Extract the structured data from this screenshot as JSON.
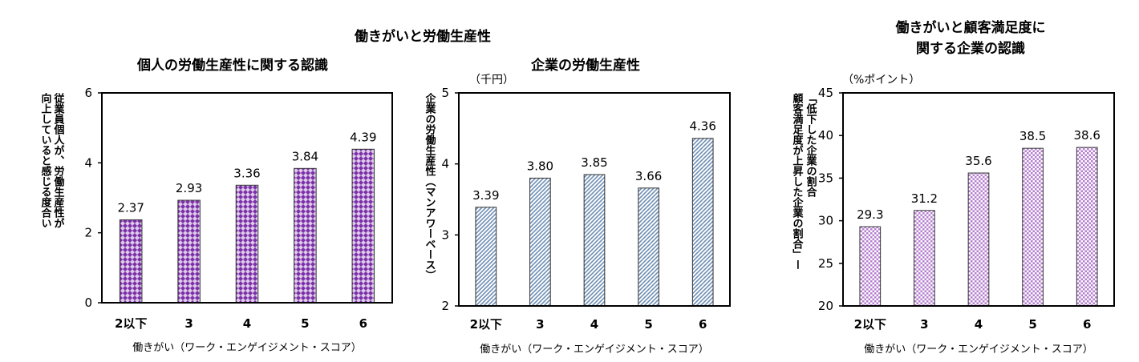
{
  "figure": {
    "group_title": "働きがいと労働生産性"
  },
  "chart_data": [
    {
      "type": "bar",
      "title": "個人の労働生産性に関する認識",
      "xlabel": "働きがい（ワーク・エンゲイジメント・スコア）",
      "ylabel": "従業員個人が、労働生産性が向上していると感じる度合い",
      "ylabel_lines": [
        "従業員個人が、労働生産性が",
        "向上していると感じる度合い"
      ],
      "unit": "",
      "categories": [
        "2以下",
        "3",
        "4",
        "5",
        "6"
      ],
      "values": [
        2.37,
        2.93,
        3.36,
        3.84,
        4.39
      ],
      "value_labels": [
        "2.37",
        "2.93",
        "3.36",
        "3.84",
        "4.39"
      ],
      "ylim": [
        0,
        6
      ],
      "yticks": [
        0,
        2,
        4,
        6
      ],
      "ytick_labels": [
        "0",
        "2",
        "4",
        "6"
      ],
      "grid": false,
      "bar_color": "#7b2fa8",
      "pattern": "crosshatch"
    },
    {
      "type": "bar",
      "title": "企業の労働生産性",
      "xlabel": "働きがい（ワーク・エンゲイジメント・スコア）",
      "ylabel": "企業の労働生産性（マンアワーベース）",
      "ylabel_lines": [
        "企業の労働生産性（マンアワーベース）"
      ],
      "unit": "（千円）",
      "categories": [
        "2以下",
        "3",
        "4",
        "5",
        "6"
      ],
      "values": [
        3.39,
        3.8,
        3.85,
        3.66,
        4.36
      ],
      "value_labels": [
        "3.39",
        "3.80",
        "3.85",
        "3.66",
        "4.36"
      ],
      "ylim": [
        2,
        5
      ],
      "yticks": [
        2,
        3,
        4,
        5
      ],
      "ytick_labels": [
        "2",
        "3",
        "4",
        "5"
      ],
      "grid": false,
      "bar_color": "#6f8fb5",
      "pattern": "diagonal"
    },
    {
      "type": "bar",
      "title": "働きがいと顧客満足度に関する企業の認識",
      "title_lines": [
        "働きがいと顧客満足度に",
        "関する企業の認識"
      ],
      "xlabel": "働きがい（ワーク・エンゲイジメント・スコア）",
      "ylabel": "顧客満足度が上昇した企業の割合ー低下した企業の割合",
      "ylabel_lines": [
        "顧客満足度が上昇した企業の割合」ー",
        "「低下した企業の割合"
      ],
      "unit": "（%ポイント）",
      "categories": [
        "2以下",
        "3",
        "4",
        "5",
        "6"
      ],
      "values": [
        29.3,
        31.2,
        35.6,
        38.5,
        38.6
      ],
      "value_labels": [
        "29.3",
        "31.2",
        "35.6",
        "38.5",
        "38.6"
      ],
      "ylim": [
        20,
        45
      ],
      "yticks": [
        20,
        25,
        30,
        35,
        40,
        45
      ],
      "ytick_labels": [
        "20",
        "25",
        "30",
        "35",
        "40",
        "45"
      ],
      "grid": false,
      "bar_color": "#b57fcf",
      "pattern": "dots"
    }
  ]
}
